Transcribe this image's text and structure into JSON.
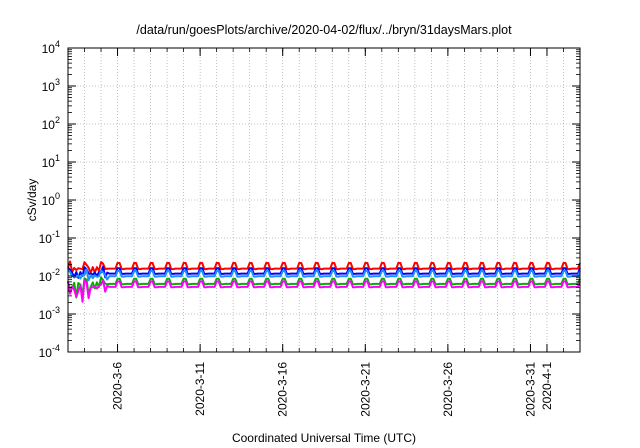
{
  "chart_data": {
    "type": "line",
    "title": "/data/run/goesPlots/archive/2020-04-02/flux/../bryn/31daysMars.plot",
    "xlabel": "Coordinated Universal Time (UTC)",
    "ylabel": "cSv/day",
    "yscale": "log",
    "ylim": [
      0.0001,
      10000
    ],
    "xlim": [
      "2020-03-03",
      "2020-04-03"
    ],
    "grid": true,
    "legend": "none",
    "x_ticks": [
      "2020-3-6",
      "2020-3-11",
      "2020-3-16",
      "2020-3-21",
      "2020-3-26",
      "2020-3-31",
      "2020-4-1"
    ],
    "x_tick_dates": [
      "2020-03-06",
      "2020-03-11",
      "2020-03-16",
      "2020-03-21",
      "2020-03-26",
      "2020-03-31",
      "2020-04-01"
    ],
    "y_ticks": [
      {
        "value": 0.0001,
        "base": "10",
        "exp": "-4"
      },
      {
        "value": 0.001,
        "base": "10",
        "exp": "-3"
      },
      {
        "value": 0.01,
        "base": "10",
        "exp": "-2"
      },
      {
        "value": 0.1,
        "base": "10",
        "exp": "-1"
      },
      {
        "value": 1,
        "base": "10",
        "exp": "0"
      },
      {
        "value": 10,
        "base": "10",
        "exp": "1"
      },
      {
        "value": 100,
        "base": "10",
        "exp": "2"
      },
      {
        "value": 1000,
        "base": "10",
        "exp": "3"
      },
      {
        "value": 10000,
        "base": "10",
        "exp": "4"
      }
    ],
    "series": [
      {
        "color": "#ff0000",
        "base": 0.0145,
        "peak": 0.022
      },
      {
        "color": "#0000ff",
        "base": 0.0108,
        "peak": 0.016
      },
      {
        "color": "#1e90ff",
        "base": 0.0092,
        "peak": 0.0135
      },
      {
        "color": "#00b000",
        "base": 0.0058,
        "peak": 0.0085
      },
      {
        "color": "#ff00ff",
        "base": 0.0048,
        "peak": 0.0072
      }
    ]
  }
}
